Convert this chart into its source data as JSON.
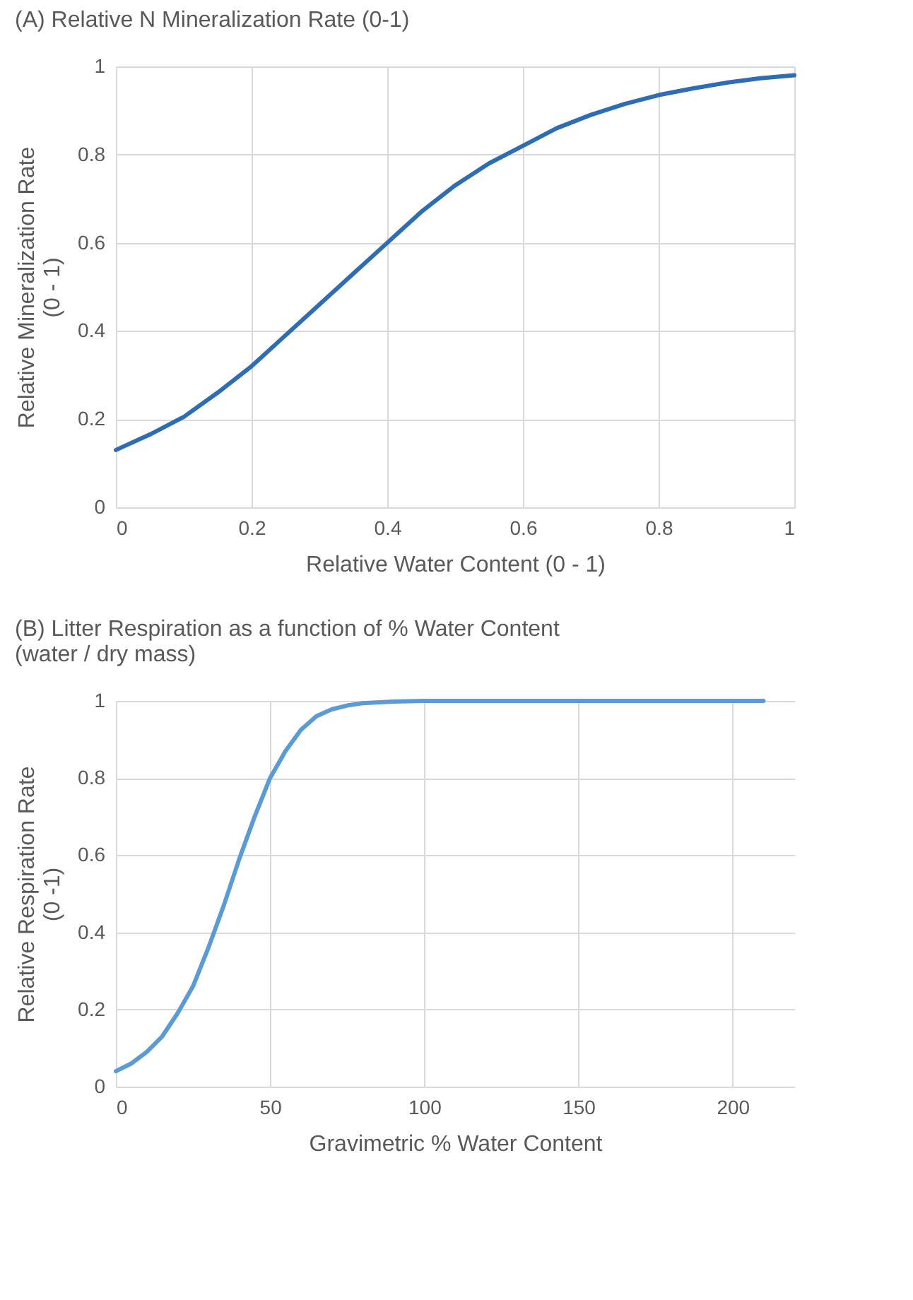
{
  "chart_data": [
    {
      "type": "line",
      "title": "(A) Relative N Mineralization Rate (0-1)",
      "xlabel": "Relative Water Content (0 - 1)",
      "ylabel": "Relative Mineralization Rate\n(0 - 1)",
      "x": [
        0,
        0.05,
        0.1,
        0.15,
        0.2,
        0.25,
        0.3,
        0.35,
        0.4,
        0.45,
        0.5,
        0.55,
        0.6,
        0.65,
        0.7,
        0.75,
        0.8,
        0.85,
        0.9,
        0.95,
        1
      ],
      "series": [
        {
          "color": "#2e6db4",
          "values": [
            0.13,
            0.165,
            0.205,
            0.26,
            0.32,
            0.39,
            0.46,
            0.53,
            0.6,
            0.67,
            0.73,
            0.78,
            0.82,
            0.86,
            0.89,
            0.915,
            0.935,
            0.95,
            0.963,
            0.973,
            0.98
          ]
        }
      ],
      "xlim": [
        0,
        1
      ],
      "ylim": [
        0,
        1
      ],
      "xticks": [
        0,
        0.2,
        0.4,
        0.6,
        0.8,
        1
      ],
      "yticks": [
        0,
        0.2,
        0.4,
        0.6,
        0.8,
        1
      ],
      "grid": true,
      "legend": false,
      "marker": "none",
      "line_style": "solid"
    },
    {
      "type": "line",
      "title": "(B) Litter Respiration as a function of  % Water Content\n (water / dry mass)",
      "xlabel": "Gravimetric % Water Content",
      "ylabel": "Relative Respiration Rate\n(0 -1)",
      "x": [
        0,
        5,
        10,
        15,
        20,
        25,
        30,
        35,
        40,
        45,
        50,
        55,
        60,
        65,
        70,
        75,
        80,
        90,
        100,
        120,
        150,
        180,
        210
      ],
      "series": [
        {
          "color": "#5b9bd5",
          "values": [
            0.04,
            0.06,
            0.09,
            0.13,
            0.19,
            0.26,
            0.36,
            0.47,
            0.59,
            0.7,
            0.8,
            0.87,
            0.925,
            0.96,
            0.978,
            0.988,
            0.994,
            0.998,
            1,
            1,
            1,
            1,
            1
          ]
        }
      ],
      "xlim": [
        0,
        220
      ],
      "ylim": [
        0,
        1
      ],
      "xticks": [
        0,
        50,
        100,
        150,
        200
      ],
      "yticks": [
        0,
        0.2,
        0.4,
        0.6,
        0.8,
        1
      ],
      "grid": true,
      "legend": false,
      "marker": "none",
      "line_style": "solid"
    }
  ]
}
